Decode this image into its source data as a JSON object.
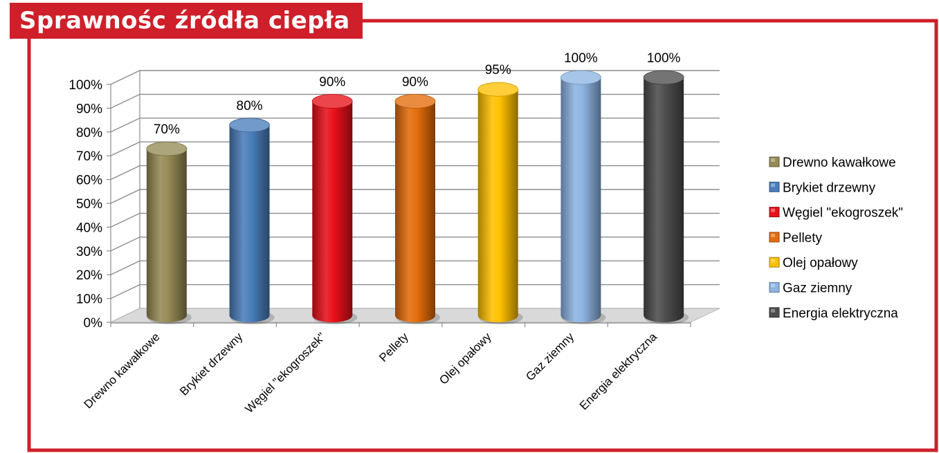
{
  "header": {
    "title": "Sprawnośc źródła ciepła"
  },
  "colors": {
    "frame": "#cf1f2a",
    "grid": "#8c8c8c",
    "floor": "#d9d9d9"
  },
  "chart_data": {
    "type": "bar",
    "title": "Sprawnośc źródła ciepła",
    "categories": [
      "Drewno kawałkowe",
      "Brykiet drzewny",
      "Węgiel \"ekogroszek\"",
      "Pellety",
      "Olej opałowy",
      "Gaz ziemny",
      "Energia elektryczna"
    ],
    "values": [
      70,
      80,
      90,
      90,
      95,
      100,
      100
    ],
    "value_labels": [
      "70%",
      "80%",
      "90%",
      "90%",
      "95%",
      "100%",
      "100%"
    ],
    "colors": [
      "#958a55",
      "#4a7ebb",
      "#e8101a",
      "#e46c0a",
      "#ffc000",
      "#8db4e2",
      "#4d4d4d"
    ],
    "y_ticks": [
      "0%",
      "10%",
      "20%",
      "30%",
      "40%",
      "50%",
      "60%",
      "70%",
      "80%",
      "90%",
      "100%"
    ],
    "ylim": [
      0,
      100
    ],
    "xlabel": "",
    "ylabel": "",
    "grid": true,
    "style": "3d-cylinder",
    "legend": {
      "position": "right",
      "entries": [
        "Drewno kawałkowe",
        "Brykiet drzewny",
        "Węgiel \"ekogroszek\"",
        "Pellety",
        "Olej opałowy",
        "Gaz ziemny",
        "Energia elektryczna"
      ]
    }
  }
}
